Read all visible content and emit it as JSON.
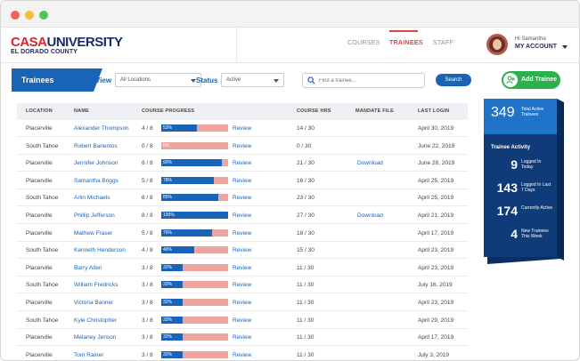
{
  "header": {
    "logo_part1": "CASA",
    "logo_part2": "UNIVERSITY",
    "logo_sub": "EL DORADO COUNTY",
    "nav": [
      "COURSES",
      "TRAINEES",
      "STAFF"
    ],
    "greeting": "Hi Samantha",
    "account_label": "MY ACCOUNT"
  },
  "toolbar": {
    "section_title": "Trainees",
    "view_label": "View",
    "view_value": "All Locations",
    "status_label": "Status",
    "status_value": "Active",
    "search_placeholder": "Find a trainee...",
    "search_button": "Search",
    "add_button": "Add Trainee"
  },
  "table": {
    "columns": [
      "LOCATION",
      "NAME",
      "COURSE PROGRESS",
      "COURSE HRS",
      "MANDATE FILE",
      "LAST LOGIN"
    ],
    "review_label": "Review",
    "rows": [
      {
        "location": "Placerville",
        "name": "Alexander Thompson",
        "progress": "4 / 8",
        "pct": "53%",
        "fill": 0.53,
        "hrs": "14 / 30",
        "mandate": "",
        "login": "April 30, 2019"
      },
      {
        "location": "South Tahoe",
        "name": "Robert Barientos",
        "progress": "0 / 8",
        "pct": "0%",
        "fill": 0,
        "hrs": "0 / 30",
        "mandate": "",
        "login": "June 22, 2019"
      },
      {
        "location": "Placerville",
        "name": "Jennifer Johnson",
        "progress": "6 / 8",
        "pct": "90%",
        "fill": 0.9,
        "hrs": "21 / 30",
        "mandate": "Download",
        "login": "June 28, 2019"
      },
      {
        "location": "Placerville",
        "name": "Samantha Briggs",
        "progress": "5 / 8",
        "pct": "78%",
        "fill": 0.78,
        "hrs": "16 / 30",
        "mandate": "",
        "login": "April 25, 2019"
      },
      {
        "location": "South Tahoe",
        "name": "Arlin Michaels",
        "progress": "6 / 8",
        "pct": "85%",
        "fill": 0.85,
        "hrs": "23 / 30",
        "mandate": "",
        "login": "April 25, 2019"
      },
      {
        "location": "Placerville",
        "name": "Phillip Jefferson",
        "progress": "8 / 8",
        "pct": "100%",
        "fill": 1.0,
        "hrs": "27 / 30",
        "mandate": "Download",
        "login": "April 21, 2019"
      },
      {
        "location": "Placerville",
        "name": "Mathew Fraser",
        "progress": "5 / 8",
        "pct": "76%",
        "fill": 0.76,
        "hrs": "18 / 30",
        "mandate": "",
        "login": "April 17, 2019"
      },
      {
        "location": "South Tahoe",
        "name": "Kenneth Henderson",
        "progress": "4 / 8",
        "pct": "49%",
        "fill": 0.49,
        "hrs": "15 / 30",
        "mandate": "",
        "login": "April 23, 2019"
      },
      {
        "location": "Placerville",
        "name": "Barry Allen",
        "progress": "3 / 8",
        "pct": "32%",
        "fill": 0.32,
        "hrs": "11 / 30",
        "mandate": "",
        "login": "April 23, 2019"
      },
      {
        "location": "South Tahoe",
        "name": "William Fredricks",
        "progress": "3 / 8",
        "pct": "32%",
        "fill": 0.32,
        "hrs": "11 / 30",
        "mandate": "",
        "login": "July 16, 2019"
      },
      {
        "location": "Placerville",
        "name": "Victoria Banner",
        "progress": "3 / 8",
        "pct": "32%",
        "fill": 0.32,
        "hrs": "11 / 30",
        "mandate": "",
        "login": "April 23, 2019"
      },
      {
        "location": "South Tahoe",
        "name": "Kyle Christopher",
        "progress": "3 / 8",
        "pct": "32%",
        "fill": 0.32,
        "hrs": "11 / 30",
        "mandate": "",
        "login": "April 29, 2019"
      },
      {
        "location": "Placerville",
        "name": "Melaney Jenson",
        "progress": "3 / 8",
        "pct": "32%",
        "fill": 0.32,
        "hrs": "11 / 30",
        "mandate": "",
        "login": "April 17, 2019"
      },
      {
        "location": "Placerville",
        "name": "Tom Rainer",
        "progress": "3 / 8",
        "pct": "32%",
        "fill": 0.32,
        "hrs": "11 / 30",
        "mandate": "",
        "login": "July 3, 2019"
      }
    ]
  },
  "stats": {
    "total": "349",
    "total_label": "Total Active Trainees",
    "activity_title": "Trainee Activity",
    "items": [
      {
        "value": "9",
        "label": "Logged In Today"
      },
      {
        "value": "143",
        "label": "Logged In Last 7 Days"
      },
      {
        "value": "174",
        "label": "Currently Active"
      },
      {
        "value": "4",
        "label": "New Trainees This Week"
      }
    ]
  },
  "colors": {
    "primary_blue": "#1a64b8",
    "dark_navy": "#0f3c78",
    "accent_red": "#e2423f",
    "progress_remaining": "#eea59f",
    "add_green": "#2bb14b"
  }
}
